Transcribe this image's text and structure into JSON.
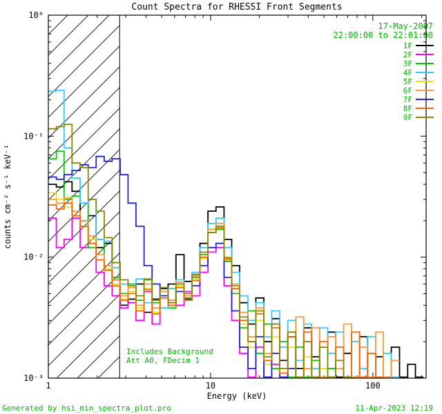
{
  "title": "Count Spectra for RHESSI Front Segments",
  "header": {
    "date": "17-May-2007",
    "time_range": "22:00:00 to 22:01:00"
  },
  "annotations": {
    "background": "Includes Background",
    "att": "Att A0, FDecim 1"
  },
  "footer": {
    "generated_by": "Generated by hsi_min_spectra_plot.pro",
    "timestamp": "11-Apr-2023 12:19"
  },
  "colors": {
    "annotation_green": "#00b300",
    "axis": "#000000"
  },
  "chart_data": {
    "type": "line",
    "subtype": "step-histogram-log-log",
    "title": "Count Spectra for RHESSI Front Segments",
    "xlabel": "Energy (keV)",
    "ylabel": "counts cm⁻² s⁻¹ keV⁻¹",
    "xscale": "log",
    "yscale": "log",
    "xlim": [
      1,
      213
    ],
    "ylim": [
      0.001,
      1
    ],
    "grid": false,
    "legend_position": "top-right",
    "xticks": [
      {
        "value": 1,
        "label": "1"
      },
      {
        "value": 10,
        "label": "10"
      },
      {
        "value": 100,
        "label": "100"
      }
    ],
    "yticks": [
      {
        "value": 1,
        "label": "10⁰"
      },
      {
        "value": 0.1,
        "label": "10⁻¹"
      },
      {
        "value": 0.01,
        "label": "10⁻²"
      },
      {
        "value": 0.001,
        "label": "10⁻³"
      }
    ],
    "hatch_region": {
      "xmin": 1.0,
      "xmax": 2.75
    },
    "bin_edges_keV": [
      1.0,
      1.12,
      1.25,
      1.4,
      1.57,
      1.76,
      1.97,
      2.21,
      2.47,
      2.77,
      3.1,
      3.47,
      3.89,
      4.36,
      4.88,
      5.47,
      6.12,
      6.86,
      7.68,
      8.6,
      9.63,
      10.8,
      12.1,
      13.5,
      15.1,
      17.0,
      19.0,
      21.3,
      23.8,
      26.7,
      29.9,
      33.5,
      37.5,
      42.0,
      47.0,
      52.7,
      59.0,
      66.1,
      74.0,
      82.9,
      92.8,
      104,
      116,
      130,
      146,
      164,
      183,
      205
    ],
    "series": [
      {
        "name": "1F",
        "color": "#000000",
        "values": [
          0.04,
          0.038,
          0.042,
          0.035,
          0.02,
          0.022,
          0.012,
          0.013,
          0.0065,
          0.004,
          0.0045,
          0.006,
          0.0035,
          0.0045,
          0.0055,
          0.006,
          0.0105,
          0.0063,
          0.0072,
          0.013,
          0.024,
          0.026,
          0.014,
          0.0085,
          0.0042,
          0.0028,
          0.0046,
          0.002,
          0.0031,
          0.0014,
          0.0022,
          0.0012,
          0.0026,
          0.0015,
          0.001,
          0.0024,
          0.001,
          0.0016,
          0.001,
          0.0022,
          0.001,
          0.0015,
          0.001,
          0.0018,
          0.001,
          0.0013,
          0.001
        ]
      },
      {
        "name": "2F",
        "color": "#ff00ff",
        "values": [
          0.021,
          0.012,
          0.014,
          0.021,
          0.012,
          0.013,
          0.0075,
          0.0058,
          0.0048,
          0.0038,
          0.0042,
          0.003,
          0.0052,
          0.0028,
          0.0038,
          0.0044,
          0.004,
          0.0052,
          0.0048,
          0.0075,
          0.011,
          0.012,
          0.0058,
          0.003,
          0.0016,
          0.001,
          0.0018,
          0.001,
          0.0013,
          null,
          null,
          null,
          null,
          null,
          null,
          null,
          null,
          null,
          null,
          null,
          null,
          null,
          null,
          null,
          null,
          null,
          null
        ]
      },
      {
        "name": "3F",
        "color": "#00cc00",
        "values": [
          0.065,
          0.075,
          0.03,
          0.032,
          0.028,
          0.012,
          0.014,
          0.0085,
          0.0068,
          0.005,
          0.006,
          0.0044,
          0.0065,
          0.0042,
          0.0052,
          0.0038,
          0.006,
          0.0046,
          0.0068,
          0.0105,
          0.016,
          0.017,
          0.0092,
          0.005,
          0.0026,
          0.0036,
          0.0016,
          0.0028,
          0.0012,
          0.002,
          0.001,
          0.0018,
          0.001,
          0.0014,
          0.001,
          0.0012,
          null,
          null,
          null,
          null,
          null,
          null,
          null,
          null,
          null,
          null,
          null
        ]
      },
      {
        "name": "4F",
        "color": "#33ccff",
        "values": [
          0.235,
          0.24,
          0.08,
          0.045,
          0.028,
          0.03,
          0.014,
          0.0135,
          0.0082,
          0.006,
          0.0052,
          0.0066,
          0.0042,
          0.006,
          0.0038,
          0.0055,
          0.0065,
          0.005,
          0.0075,
          0.012,
          0.019,
          0.021,
          0.012,
          0.0075,
          0.0048,
          0.003,
          0.0042,
          0.0022,
          0.0036,
          0.0018,
          0.003,
          0.0014,
          0.0028,
          0.0012,
          0.0026,
          0.0016,
          0.0024,
          0.001,
          0.002,
          0.0012,
          0.0022,
          0.001,
          0.0016,
          0.001,
          null,
          null,
          null
        ]
      },
      {
        "name": "5F",
        "color": "#e6e600",
        "values": [
          0.034,
          0.03,
          0.026,
          0.022,
          0.018,
          0.014,
          0.0095,
          0.008,
          0.006,
          0.0045,
          0.0052,
          0.0038,
          0.0055,
          0.0035,
          0.0048,
          0.004,
          0.0058,
          0.0045,
          0.0065,
          0.0098,
          0.016,
          0.018,
          0.0095,
          0.0055,
          0.0028,
          0.0018,
          0.003,
          0.0013,
          0.0022,
          0.001,
          0.0018,
          0.001,
          0.0015,
          0.001,
          0.0012,
          null,
          null,
          null,
          null,
          null,
          null,
          null,
          null,
          null,
          null,
          null,
          null
        ]
      },
      {
        "name": "6F",
        "color": "#ff9933",
        "values": [
          0.03,
          0.028,
          0.031,
          0.024,
          0.02,
          0.015,
          0.0105,
          0.0085,
          0.0065,
          0.0048,
          0.0056,
          0.004,
          0.006,
          0.0038,
          0.0052,
          0.0044,
          0.0062,
          0.0048,
          0.007,
          0.011,
          0.017,
          0.019,
          0.01,
          0.006,
          0.0035,
          0.0022,
          0.0038,
          0.0016,
          0.0028,
          0.0012,
          0.0024,
          0.0032,
          0.0012,
          0.0026,
          0.001,
          0.0022,
          0.0012,
          0.0028,
          0.001,
          0.0018,
          0.001,
          0.0024,
          0.001,
          0.0014,
          null,
          null,
          null
        ]
      },
      {
        "name": "7F",
        "color": "#2222dd",
        "values": [
          0.046,
          0.044,
          0.048,
          0.052,
          0.058,
          0.055,
          0.068,
          0.062,
          0.065,
          0.048,
          0.028,
          0.018,
          0.0085,
          0.006,
          0.0048,
          0.004,
          0.0052,
          0.0045,
          0.0058,
          0.0085,
          0.012,
          0.013,
          0.0068,
          0.0036,
          0.0018,
          0.0012,
          0.0022,
          0.001,
          0.0016,
          0.001,
          0.0012,
          null,
          null,
          null,
          null,
          null,
          null,
          null,
          null,
          null,
          null,
          null,
          null,
          null,
          null,
          null,
          null
        ]
      },
      {
        "name": "8F",
        "color": "#ff6600",
        "values": [
          0.027,
          0.025,
          0.028,
          0.022,
          0.018,
          0.013,
          0.0095,
          0.0078,
          0.0058,
          0.0044,
          0.005,
          0.0036,
          0.0054,
          0.0034,
          0.0046,
          0.004,
          0.0056,
          0.0044,
          0.0064,
          0.01,
          0.016,
          0.0175,
          0.0095,
          0.0055,
          0.003,
          0.002,
          0.0034,
          0.0014,
          0.0026,
          0.0011,
          0.0022,
          0.001,
          0.0024,
          0.001,
          0.002,
          0.001,
          0.0018,
          0.001,
          0.0024,
          0.001,
          0.0016,
          0.001,
          null,
          null,
          null,
          null,
          null
        ]
      },
      {
        "name": "9F",
        "color": "#888800",
        "values": [
          0.115,
          0.12,
          0.125,
          0.06,
          0.055,
          0.03,
          0.024,
          0.0145,
          0.009,
          0.0065,
          0.0058,
          0.0048,
          0.0066,
          0.0044,
          0.0056,
          0.0042,
          0.006,
          0.005,
          0.0072,
          0.011,
          0.016,
          0.018,
          0.0098,
          0.0058,
          0.0032,
          0.002,
          0.0036,
          0.0015,
          0.0028,
          0.0012,
          0.0024,
          0.001,
          0.002,
          0.001,
          0.0018,
          0.001,
          0.0014,
          0.001,
          null,
          null,
          null,
          null,
          null,
          null,
          null,
          null,
          null
        ]
      }
    ]
  }
}
